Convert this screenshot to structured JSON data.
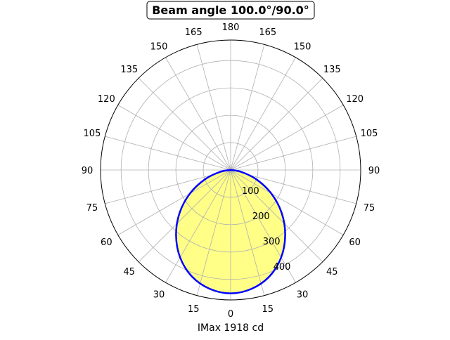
{
  "chart_data": {
    "type": "polar",
    "title": "Beam angle 100.0°/90.0°",
    "xlabel": "IMax 1918 cd",
    "theta_zero": "bottom",
    "theta_ticks": [
      0,
      15,
      30,
      45,
      60,
      75,
      90,
      105,
      120,
      135,
      150,
      165,
      180,
      165,
      150,
      135,
      120,
      105,
      90,
      75,
      60,
      45,
      30,
      15
    ],
    "r_ticks": [
      100,
      200,
      300,
      400
    ],
    "rlim": [
      0,
      475
    ],
    "grid": true,
    "fill_color": "#ffff88",
    "line_color": "#0000ff",
    "series": [
      {
        "theta_deg": [
          -90,
          -80,
          -70,
          -60,
          -50,
          -40,
          -30,
          -20,
          -10,
          0,
          10,
          20,
          30,
          40,
          50,
          60,
          70,
          80,
          90
        ],
        "r": [
          0,
          39,
          100,
          171,
          243,
          310,
          369,
          414,
          441,
          451,
          441,
          414,
          369,
          310,
          243,
          171,
          100,
          39,
          0
        ]
      }
    ]
  }
}
